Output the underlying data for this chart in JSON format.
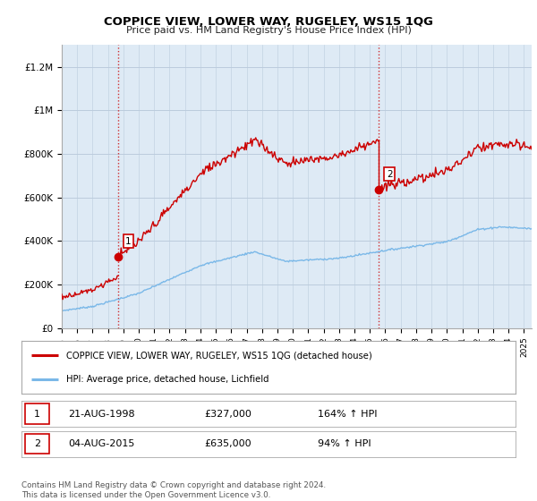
{
  "title": "COPPICE VIEW, LOWER WAY, RUGELEY, WS15 1QG",
  "subtitle": "Price paid vs. HM Land Registry's House Price Index (HPI)",
  "ylabel_ticks": [
    "£0",
    "£200K",
    "£400K",
    "£600K",
    "£800K",
    "£1M",
    "£1.2M"
  ],
  "ytick_values": [
    0,
    200000,
    400000,
    600000,
    800000,
    1000000,
    1200000
  ],
  "ylim": [
    0,
    1300000
  ],
  "xlim_start": 1995.0,
  "xlim_end": 2025.5,
  "sale1_x": 1998.64,
  "sale1_y": 327000,
  "sale2_x": 2015.59,
  "sale2_y": 635000,
  "hpi_line_color": "#7ab8e8",
  "price_line_color": "#cc0000",
  "vline_color": "#cc0000",
  "plot_bg_color": "#deeaf5",
  "legend_label_price": "COPPICE VIEW, LOWER WAY, RUGELEY, WS15 1QG (detached house)",
  "legend_label_hpi": "HPI: Average price, detached house, Lichfield",
  "footer": "Contains HM Land Registry data © Crown copyright and database right 2024.\nThis data is licensed under the Open Government Licence v3.0.",
  "table_rows": [
    {
      "num": "1",
      "date": "21-AUG-1998",
      "price": "£327,000",
      "hpi": "164% ↑ HPI"
    },
    {
      "num": "2",
      "date": "04-AUG-2015",
      "price": "£635,000",
      "hpi": "94% ↑ HPI"
    }
  ],
  "background_color": "#ffffff",
  "grid_color": "#bbccdd"
}
